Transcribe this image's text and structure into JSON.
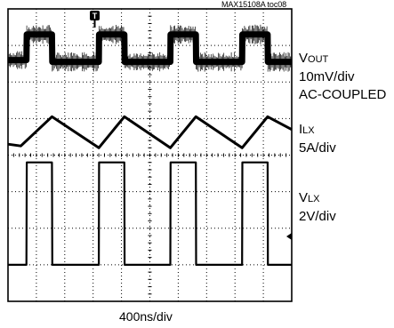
{
  "figure_ref": "MAX15108A toc08",
  "timebase": "400ns/div",
  "trigger_marker": "T",
  "channels": {
    "vout": {
      "symbol": "V",
      "subscript": "OUT",
      "scale": "10mV/div",
      "coupling": "AC-COUPLED"
    },
    "ilx": {
      "symbol": "I",
      "subscript": "LX",
      "scale": "5A/div"
    },
    "vlx": {
      "symbol": "V",
      "subscript": "LX",
      "scale": "2V/div"
    }
  },
  "chart_data": {
    "type": "line",
    "title": "",
    "grid": true,
    "divisions": {
      "x": 10,
      "y": 8
    },
    "x_units": "div",
    "y_units": "div",
    "xlim": [
      0,
      10
    ],
    "ylim": [
      -4,
      4
    ],
    "rising_edges_div": [
      0.65,
      3.2,
      5.72,
      8.25
    ],
    "falling_edges_div": [
      1.55,
      4.1,
      6.62,
      9.15
    ],
    "series": [
      {
        "name": "VOUT",
        "x": [
          0,
          0.65,
          0.66,
          1.55,
          1.56,
          3.2,
          3.21,
          4.1,
          4.11,
          5.72,
          5.73,
          6.62,
          6.63,
          8.25,
          8.26,
          9.15,
          9.16,
          10
        ],
        "y": [
          2.6,
          2.6,
          3.3,
          3.3,
          2.55,
          2.55,
          3.3,
          3.3,
          2.55,
          2.55,
          3.3,
          3.3,
          2.55,
          2.55,
          3.3,
          3.3,
          2.55,
          2.55
        ]
      },
      {
        "name": "ILX",
        "x": [
          0,
          0.45,
          1.55,
          3.2,
          4.1,
          5.72,
          6.62,
          8.25,
          9.15,
          10
        ],
        "y": [
          0.3,
          0.25,
          1.05,
          0.2,
          1.05,
          0.2,
          1.05,
          0.2,
          1.05,
          0.7
        ]
      },
      {
        "name": "VLX",
        "x": [
          0,
          0.65,
          0.66,
          1.55,
          1.56,
          3.2,
          3.21,
          4.1,
          4.11,
          5.72,
          5.73,
          6.62,
          6.63,
          8.25,
          8.26,
          9.15,
          9.16,
          10
        ],
        "y": [
          -3.0,
          -3.0,
          -0.2,
          -0.2,
          -3.0,
          -3.0,
          -0.2,
          -0.2,
          -3.0,
          -3.0,
          -0.2,
          -0.2,
          -3.0,
          -3.0,
          -0.2,
          -0.2,
          -3.0,
          -3.0
        ]
      }
    ]
  }
}
